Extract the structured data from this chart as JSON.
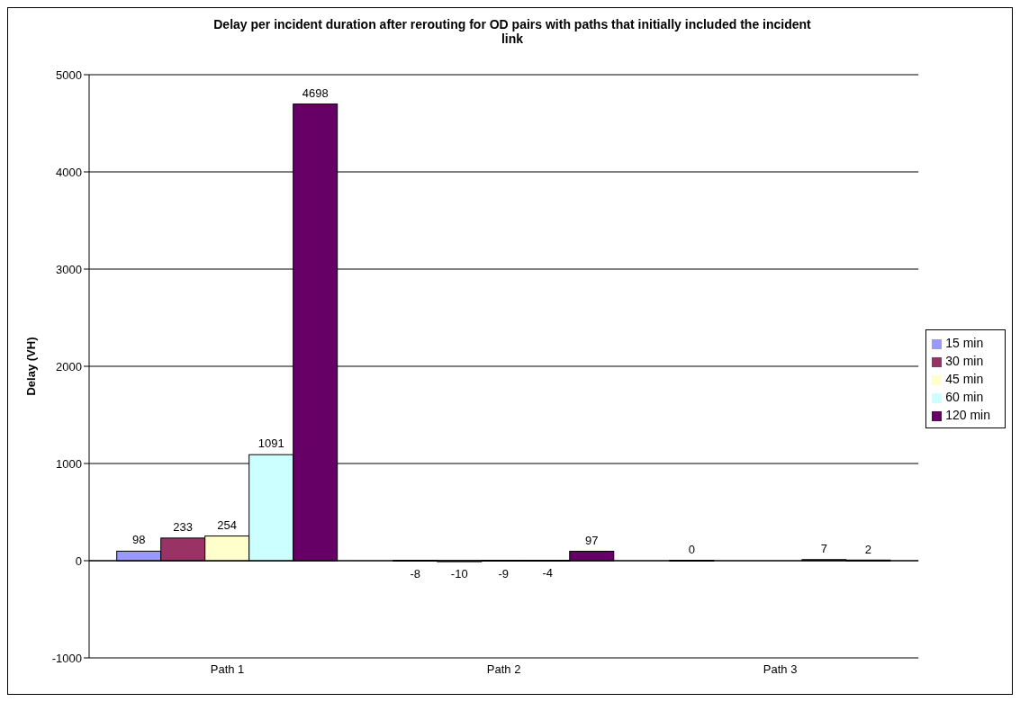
{
  "chart_data": {
    "type": "bar",
    "title": "Delay per incident duration after rerouting for OD pairs with paths that initially included the incident link",
    "ylabel": "Delay (VH)",
    "categories": [
      "Path 1",
      "Path 2",
      "Path 3"
    ],
    "series": [
      {
        "name": "15 min",
        "color": "#9999ff",
        "values": [
          98,
          -8,
          0
        ]
      },
      {
        "name": "30 min",
        "color": "#993366",
        "values": [
          233,
          -10,
          null
        ]
      },
      {
        "name": "45 min",
        "color": "#ffffcc",
        "values": [
          254,
          -9,
          null
        ]
      },
      {
        "name": "60 min",
        "color": "#ccffff",
        "values": [
          1091,
          -4,
          7
        ]
      },
      {
        "name": "120 min",
        "color": "#660066",
        "values": [
          4698,
          97,
          2
        ]
      }
    ],
    "ylim": [
      -1000,
      5000
    ],
    "yticks": [
      -1000,
      0,
      1000,
      2000,
      3000,
      4000,
      5000
    ],
    "grid": "y",
    "legend": "right",
    "data_labels": true
  }
}
